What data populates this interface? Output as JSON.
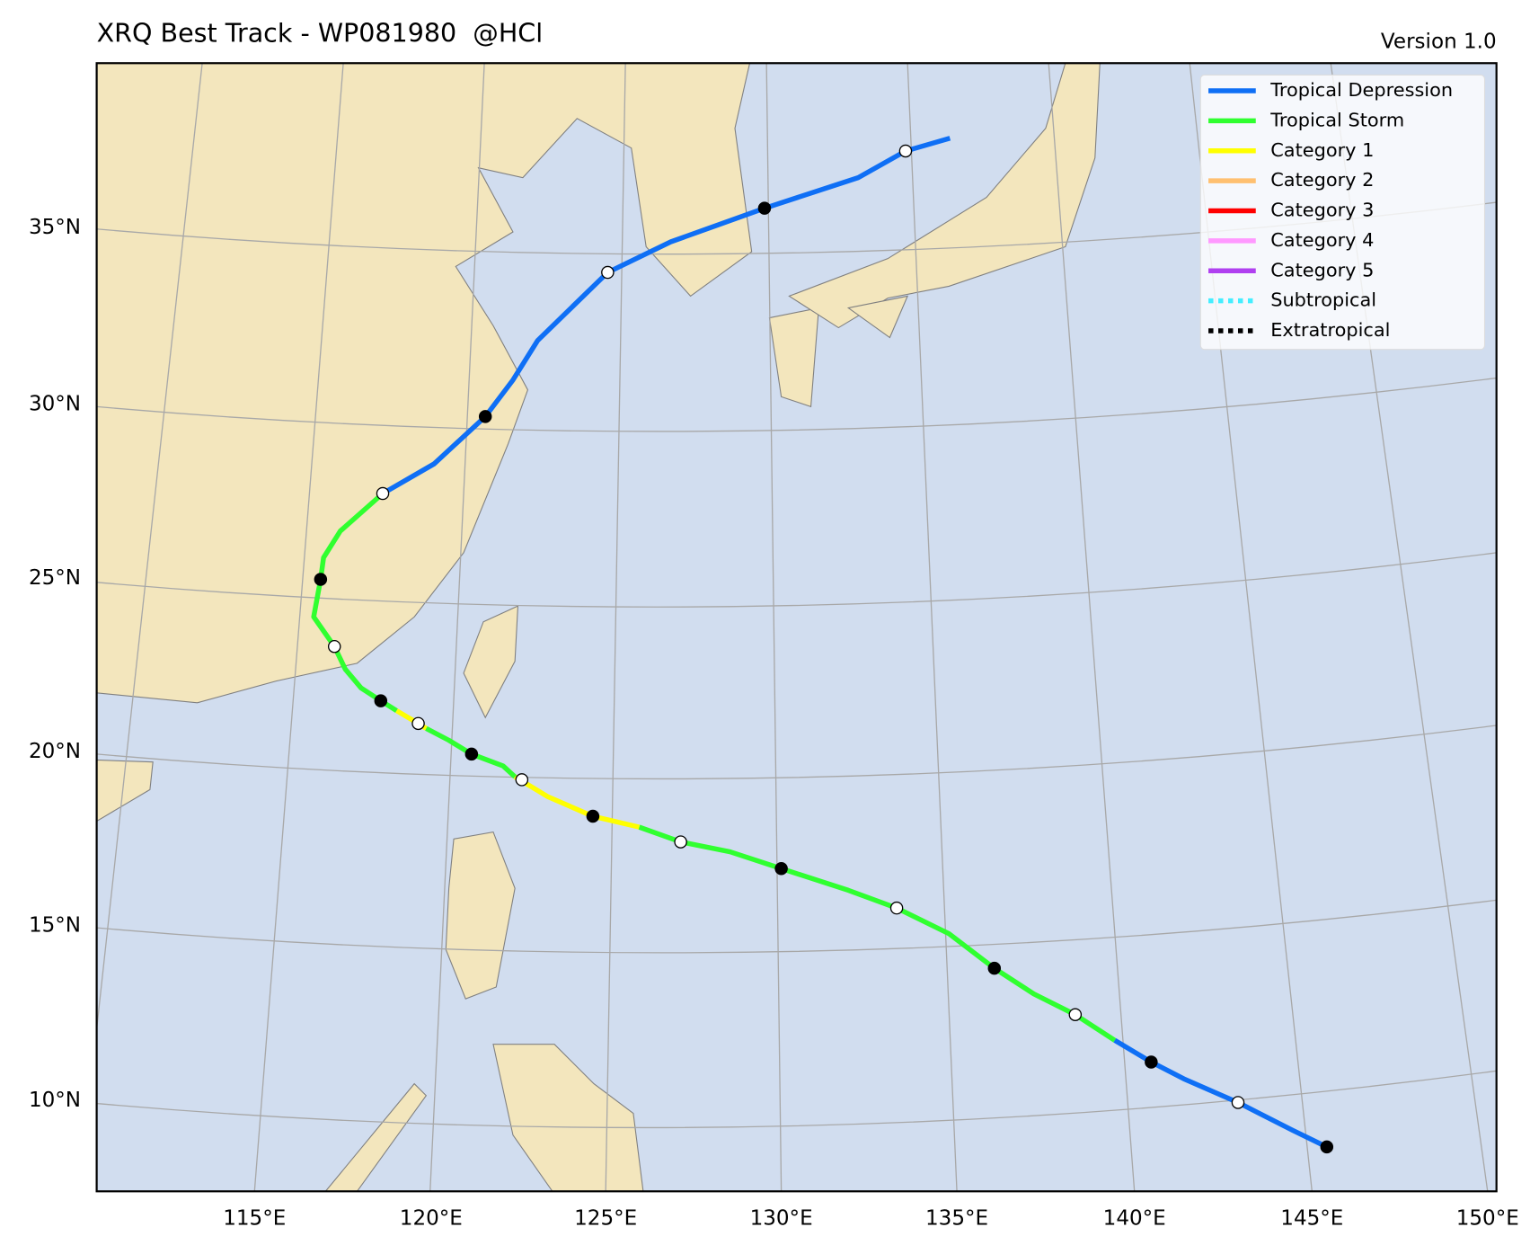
{
  "title": "XRQ Best Track - WP081980  @HCl",
  "version": "Version 1.0",
  "legend": [
    {
      "name": "Tropical Depression",
      "color": "#0f6ff5",
      "style": "solid"
    },
    {
      "name": "Tropical Storm",
      "color": "#30ff30",
      "style": "solid"
    },
    {
      "name": "Category 1",
      "color": "#ffff00",
      "style": "solid"
    },
    {
      "name": "Category 2",
      "color": "#ffc070",
      "style": "solid"
    },
    {
      "name": "Category 3",
      "color": "#ff0000",
      "style": "solid"
    },
    {
      "name": "Category 4",
      "color": "#ff99ff",
      "style": "solid"
    },
    {
      "name": "Category 5",
      "color": "#b040f0",
      "style": "solid"
    },
    {
      "name": "Subtropical",
      "color": "#44eeff",
      "style": "dotted"
    },
    {
      "name": "Extratropical",
      "color": "#000000",
      "style": "dotted"
    }
  ],
  "lat_labels": [
    "10°N",
    "15°N",
    "20°N",
    "25°N",
    "30°N",
    "35°N"
  ],
  "lon_labels": [
    "115°E",
    "120°E",
    "125°E",
    "130°E",
    "135°E",
    "140°E",
    "145°E",
    "150°E"
  ]
}
